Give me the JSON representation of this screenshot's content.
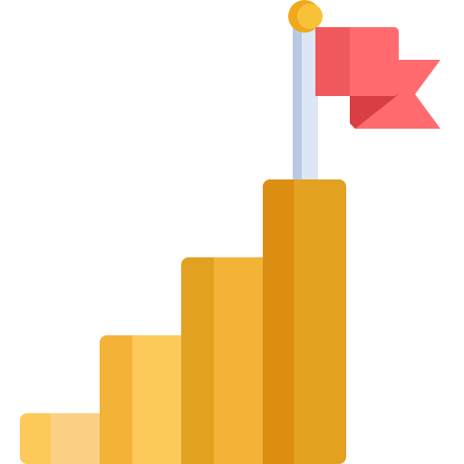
{
  "icon": {
    "name": "goal-stairs-flag-icon",
    "steps": [
      {
        "name": "step-1",
        "level": 1
      },
      {
        "name": "step-2",
        "level": 2
      },
      {
        "name": "step-3",
        "level": 3
      },
      {
        "name": "step-4",
        "level": 4
      }
    ],
    "flag": {
      "name": "flag-icon"
    },
    "colors": {
      "step1_face": "#FAD085",
      "step1_side": "#FCC95A",
      "step2_face": "#FCC95A",
      "step2_side": "#F3B336",
      "step3_face": "#F3B336",
      "step3_side": "#E2A121",
      "step4_face": "#E2A121",
      "step4_side": "#DC8F12",
      "pole": "#DCE6F5",
      "pole_shade": "#B9C9E4",
      "knob": "#F7C23A",
      "knob_shade": "#F0A81C",
      "flag_main": "#FF6B6E",
      "flag_shade": "#F0595C",
      "flag_fold": "#D93E45"
    }
  }
}
